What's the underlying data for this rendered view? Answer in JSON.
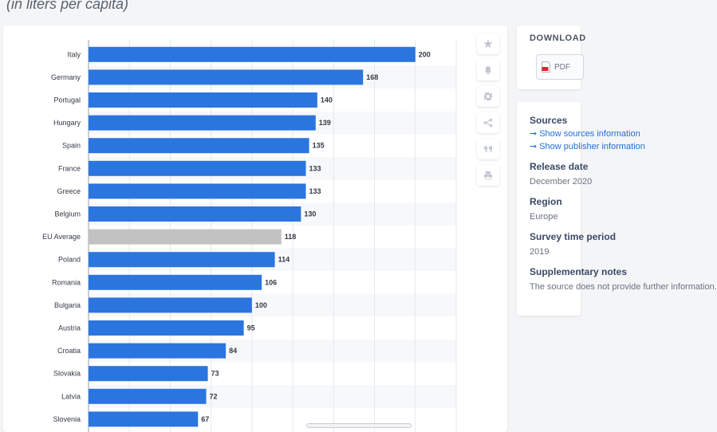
{
  "header": {
    "subtitle": "(in liters per capita)"
  },
  "chart_data": {
    "type": "bar",
    "orientation": "horizontal",
    "unit": "liters per capita",
    "xlim": [
      0,
      225
    ],
    "categories": [
      "Italy",
      "Germany",
      "Portugal",
      "Hungary",
      "Spain",
      "France",
      "Greece",
      "Belgium",
      "EU Average",
      "Poland",
      "Romania",
      "Bulgaria",
      "Austria",
      "Croatia",
      "Slovakia",
      "Latvia",
      "Slovenia"
    ],
    "values": [
      200,
      168,
      140,
      139,
      135,
      133,
      133,
      130,
      118,
      114,
      106,
      100,
      95,
      84,
      73,
      72,
      67
    ],
    "highlight_category": "EU Average",
    "colors": {
      "bar": "#2b75de",
      "highlight": "#c2c2c2"
    }
  },
  "toolbar": {
    "items": [
      {
        "name": "star",
        "icon": "star-icon"
      },
      {
        "name": "notification",
        "icon": "bell-icon"
      },
      {
        "name": "settings",
        "icon": "gear-icon"
      },
      {
        "name": "share",
        "icon": "share-icon"
      },
      {
        "name": "citation",
        "icon": "quote-icon"
      },
      {
        "name": "print",
        "icon": "printer-icon"
      }
    ]
  },
  "download": {
    "title": "DOWNLOAD",
    "pdf_label": "PDF"
  },
  "info": {
    "sources_heading": "Sources",
    "show_sources_link": "Show sources information",
    "show_publisher_link": "Show publisher information",
    "release_heading": "Release date",
    "release_value": "December 2020",
    "region_heading": "Region",
    "region_value": "Europe",
    "survey_heading": "Survey time period",
    "survey_value": "2019",
    "supplementary_heading": "Supplementary notes",
    "supplementary_value": "The source does not provide further information."
  }
}
